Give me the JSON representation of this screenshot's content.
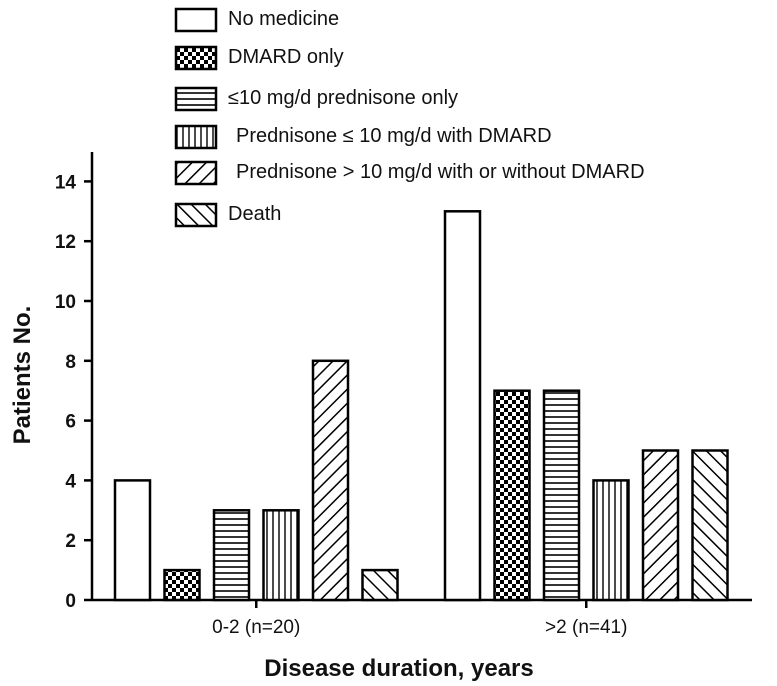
{
  "chart_data": {
    "type": "bar",
    "xlabel": "Disease duration, years",
    "ylabel": "Patients No.",
    "ylim": [
      0,
      15
    ],
    "yticks": [
      0,
      2,
      4,
      6,
      8,
      10,
      12,
      14
    ],
    "grid": false,
    "legend_position": "top",
    "categories": [
      "0-2 (n=20)",
      ">2  (n=41)"
    ],
    "series": [
      {
        "name": "No medicine",
        "pattern": "none",
        "values": [
          4,
          13
        ]
      },
      {
        "name": "DMARD   only",
        "pattern": "checker",
        "values": [
          1,
          7
        ]
      },
      {
        "name": "≤10 mg/d prednisone only",
        "pattern": "horizontal-lines",
        "values": [
          3,
          7
        ]
      },
      {
        "name": "Prednisone ≤ 10 mg/d with DMARD",
        "pattern": "vertical-lines",
        "values": [
          3,
          4
        ]
      },
      {
        "name": "Prednisone > 10 mg/d with or without DMARD",
        "pattern": "diagonal-up",
        "values": [
          8,
          5
        ]
      },
      {
        "name": "Death",
        "pattern": "diagonal-down",
        "values": [
          1,
          5
        ]
      }
    ],
    "colors": {
      "stroke": "#000000",
      "fill": "#ffffff"
    }
  }
}
